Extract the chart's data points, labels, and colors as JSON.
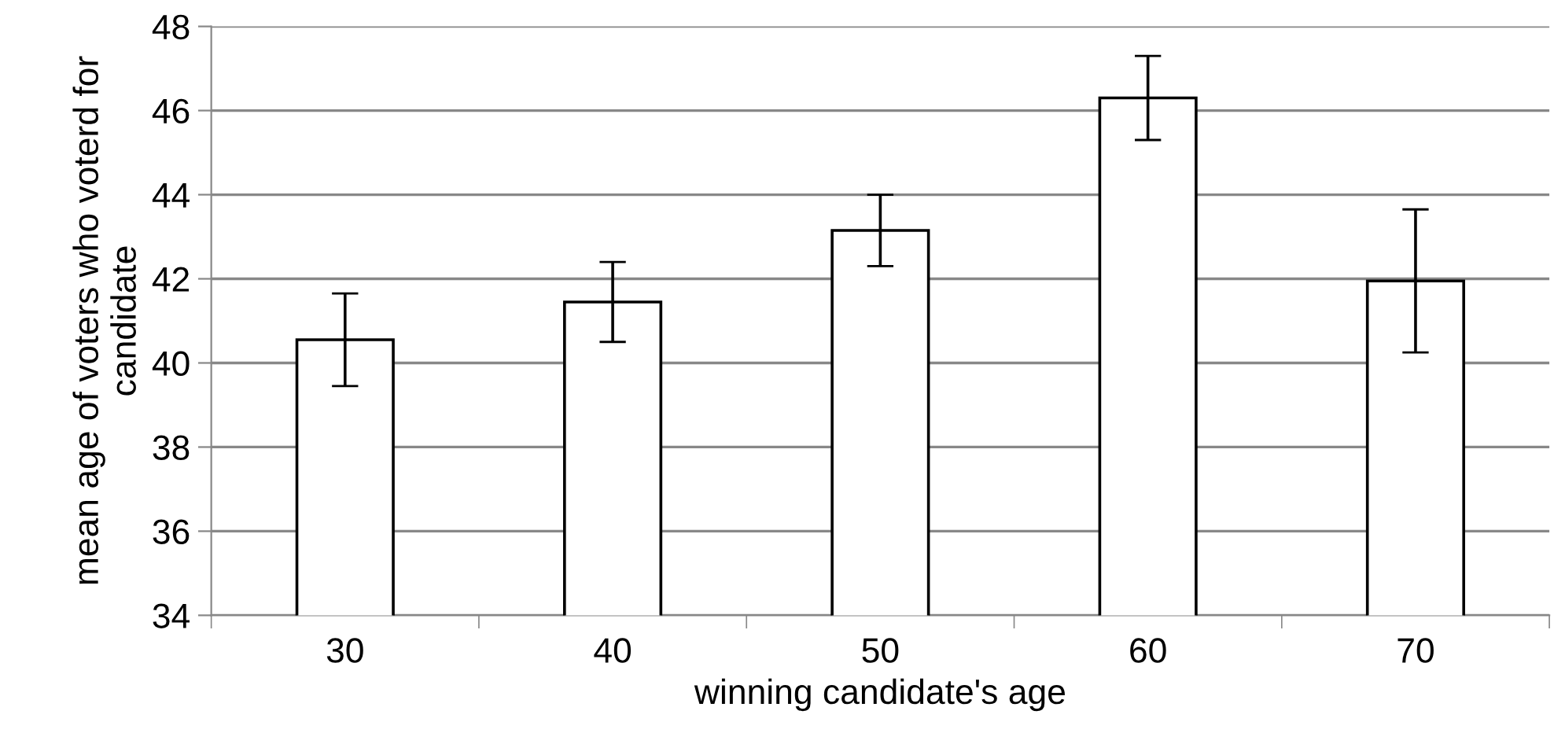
{
  "chart_data": {
    "type": "bar",
    "xlabel": "winning candidate's age",
    "ylabel": "mean age of voters who voterd for candidate",
    "categories": [
      "30",
      "40",
      "50",
      "60",
      "70"
    ],
    "values": [
      40.55,
      41.45,
      43.15,
      46.3,
      41.95
    ],
    "errors": [
      1.1,
      0.95,
      0.85,
      1.0,
      1.7
    ],
    "color": "#ffffff",
    "ylim": [
      34,
      48
    ],
    "yticks": [
      34,
      36,
      38,
      40,
      42,
      44,
      46,
      48
    ],
    "grid": "y",
    "legend": false
  }
}
